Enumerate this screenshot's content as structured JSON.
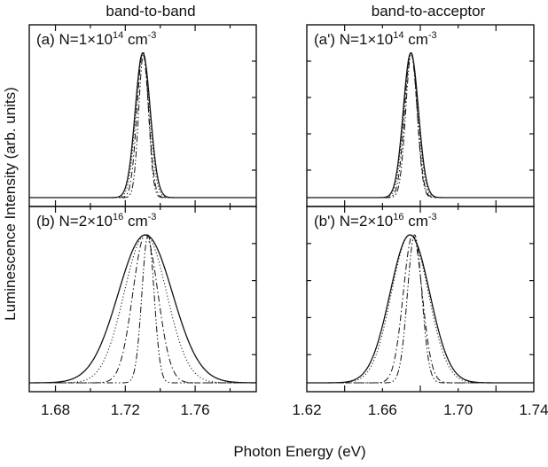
{
  "figure": {
    "ylabel": "Luminescence Intensity (arb. units)",
    "xlabel": "Photon Energy (eV)"
  },
  "columns": [
    {
      "title": "band-to-band"
    },
    {
      "title": "band-to-acceptor"
    }
  ],
  "chart_data": [
    {
      "id": "a",
      "type": "line",
      "panel_label": "(a) N=1×10",
      "label_exponent": "14",
      "label_unit": "cm",
      "unit_exponent": "-3",
      "xlim": [
        1.665,
        1.795
      ],
      "ylim": [
        0,
        1.12
      ],
      "x_ticks": [],
      "series": [
        {
          "style": "solid",
          "center": 1.73,
          "width": 0.0043
        },
        {
          "style": "dotted",
          "center": 1.73,
          "width": 0.0039
        },
        {
          "style": "dashdot",
          "center": 1.73,
          "width": 0.0033
        },
        {
          "style": "dashdotdot",
          "center": 1.7305,
          "width": 0.0028
        }
      ]
    },
    {
      "id": "b",
      "type": "line",
      "panel_label": "(b) N=2×10",
      "label_exponent": "16",
      "label_unit": "cm",
      "unit_exponent": "-3",
      "xlim": [
        1.665,
        1.795
      ],
      "ylim": [
        0,
        1.12
      ],
      "x_ticks": [
        "1.68",
        "1.72",
        "1.76"
      ],
      "series": [
        {
          "style": "solid",
          "center": 1.7315,
          "width": 0.0155
        },
        {
          "style": "dotted",
          "center": 1.7315,
          "width": 0.0122
        },
        {
          "style": "dashdot",
          "center": 1.7315,
          "width": 0.0072
        },
        {
          "style": "dashdotdot",
          "center": 1.733,
          "width": 0.0035
        }
      ]
    },
    {
      "id": "a_prime",
      "type": "line",
      "panel_label": "(a') N=1×10",
      "label_exponent": "14",
      "label_unit": "cm",
      "unit_exponent": "-3",
      "xlim": [
        1.62,
        1.74
      ],
      "ylim": [
        0,
        1.12
      ],
      "x_ticks": [],
      "series": [
        {
          "style": "solid",
          "center": 1.675,
          "width": 0.004
        },
        {
          "style": "dotted",
          "center": 1.675,
          "width": 0.0037
        },
        {
          "style": "dashdot",
          "center": 1.675,
          "width": 0.0033
        },
        {
          "style": "dashdotdot",
          "center": 1.6753,
          "width": 0.003
        }
      ]
    },
    {
      "id": "b_prime",
      "type": "line",
      "panel_label": "(b') N=2×10",
      "label_exponent": "16",
      "label_unit": "cm",
      "unit_exponent": "-3",
      "xlim": [
        1.62,
        1.74
      ],
      "ylim": [
        0,
        1.12
      ],
      "x_ticks": [
        "1.62",
        "1.66",
        "1.70",
        "1.74"
      ],
      "series": [
        {
          "style": "solid",
          "center": 1.6745,
          "width": 0.0105
        },
        {
          "style": "dotted",
          "center": 1.6745,
          "width": 0.0098
        },
        {
          "style": "dashdot",
          "center": 1.676,
          "width": 0.005
        },
        {
          "style": "dashdotdot",
          "center": 1.677,
          "width": 0.0038
        }
      ]
    }
  ]
}
